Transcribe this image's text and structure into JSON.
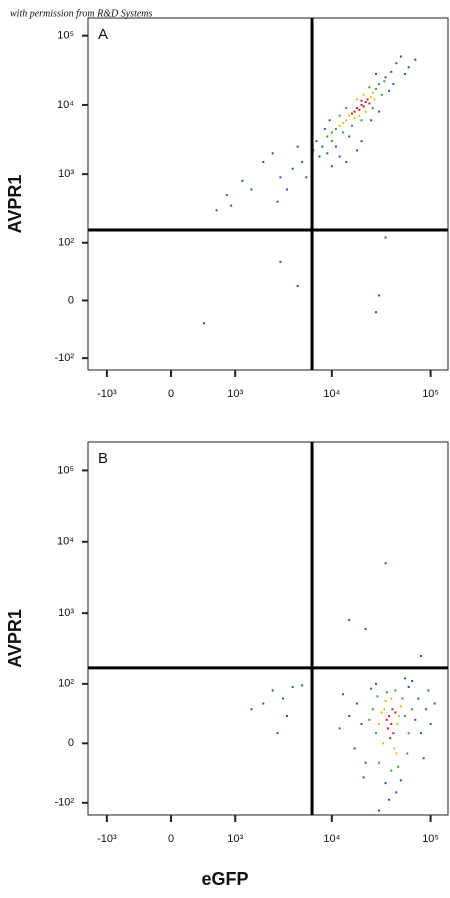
{
  "credit": "with permission from R&D Systems",
  "chart_data": [
    {
      "type": "scatter",
      "panel_label": "A",
      "ylabel": "AVPR1",
      "xscale": "biexponential",
      "yscale": "biexponential",
      "xlim": [
        -1600,
        150000
      ],
      "ylim": [
        -150,
        180000
      ],
      "xticks": [
        {
          "value": -1000,
          "label": "-10³"
        },
        0,
        {
          "value": 1000,
          "label": "10³"
        },
        {
          "value": 10000,
          "label": "10⁴"
        },
        {
          "value": 100000,
          "label": "10⁵"
        }
      ],
      "yticks": [
        {
          "value": -100,
          "label": "-10²"
        },
        0,
        {
          "value": 100,
          "label": "10²"
        },
        {
          "value": 1000,
          "label": "10³"
        },
        {
          "value": 10000,
          "label": "10⁴"
        },
        {
          "value": 100000,
          "label": "10⁵"
        }
      ],
      "gates": {
        "x": 6300,
        "y": 155
      },
      "series": [
        {
          "color": "#3050b0",
          "x": [
            8000,
            7000,
            9000,
            40000,
            45000,
            35000,
            50000,
            6500,
            11000,
            15000,
            25000,
            30000,
            38000,
            60000,
            9500,
            8500,
            12000,
            20000,
            42000,
            55000,
            7500,
            18000,
            28000,
            70000,
            14000,
            5000,
            4000,
            3000,
            2000,
            1500,
            2500,
            1200,
            800,
            3500,
            600,
            900,
            4500,
            5500,
            2800,
            10000,
            3000,
            4500,
            30000,
            400,
            28000,
            35000
          ],
          "y": [
            2500,
            3000,
            2000,
            30000,
            40000,
            25000,
            50000,
            2200,
            2500,
            3500,
            6000,
            8000,
            16000,
            35000,
            6000,
            4500,
            1800,
            3000,
            20000,
            28000,
            1800,
            2200,
            28000,
            45000,
            1500,
            1500,
            1200,
            900,
            1500,
            600,
            2000,
            800,
            500,
            600,
            300,
            350,
            2500,
            900,
            400,
            1300,
            50,
            15,
            5,
            -25,
            -12,
            120
          ]
        },
        {
          "color": "#3c9a3c",
          "x": [
            11000,
            28000,
            10000,
            30000,
            13000,
            24000,
            9000,
            16000,
            32000,
            12000,
            20000,
            34000,
            14000,
            26000,
            10000
          ],
          "y": [
            4500,
            17000,
            4000,
            20000,
            4000,
            18000,
            3500,
            5000,
            14000,
            7000,
            6000,
            22000,
            9000,
            9000,
            3000
          ]
        },
        {
          "color": "#e0c020",
          "x": [
            15000,
            25000,
            14000,
            22000,
            18000,
            26000,
            13000,
            17000,
            27000,
            21000,
            12000,
            19000
          ],
          "y": [
            7000,
            13000,
            6000,
            8000,
            12000,
            15000,
            5500,
            6500,
            12000,
            14000,
            5000,
            7000
          ]
        },
        {
          "color": "#d02020",
          "x": [
            18000,
            20000,
            22000,
            19000,
            21000,
            17000,
            23000,
            20000,
            16000,
            24000
          ],
          "y": [
            9000,
            10000,
            11000,
            8500,
            9500,
            8000,
            12000,
            11500,
            7500,
            10500
          ]
        }
      ]
    },
    {
      "type": "scatter",
      "panel_label": "B",
      "ylabel": "AVPR1",
      "xlabel": "eGFP",
      "xscale": "biexponential",
      "yscale": "biexponential",
      "xlim": [
        -1600,
        150000
      ],
      "ylim": [
        -150,
        250000
      ],
      "xticks": [
        {
          "value": -1000,
          "label": "-10³"
        },
        0,
        {
          "value": 1000,
          "label": "10³"
        },
        {
          "value": 10000,
          "label": "10⁴"
        },
        {
          "value": 100000,
          "label": "10⁵"
        }
      ],
      "yticks": [
        {
          "value": -100,
          "label": "-10²"
        },
        0,
        {
          "value": 100,
          "label": "10²"
        },
        {
          "value": 1000,
          "label": "10³"
        },
        {
          "value": 10000,
          "label": "10⁴"
        },
        {
          "value": 100000,
          "label": "10⁵"
        }
      ],
      "gates": {
        "x": 6300,
        "y": 170
      },
      "series": [
        {
          "color": "#3050b0",
          "x": [
            20000,
            70000,
            18000,
            80000,
            22000,
            75000,
            25000,
            15000,
            90000,
            35000,
            50000,
            60000,
            17000,
            100000,
            12000,
            45000,
            28000,
            85000,
            65000,
            13000,
            110000,
            38000,
            21000,
            95000,
            55000,
            35000,
            15000,
            22000,
            80000,
            30000,
            2000,
            2500,
            3500,
            4000,
            1500,
            2800,
            3200,
            5000
          ],
          "y": [
            20,
            25,
            50,
            10,
            -20,
            60,
            85,
            30,
            40,
            -50,
            -45,
            90,
            -5,
            20,
            15,
            -70,
            100,
            -15,
            110,
            70,
            50,
            -90,
            -40,
            80,
            120,
            5000,
            800,
            600,
            250,
            -130,
            50,
            80,
            30,
            90,
            40,
            10,
            60,
            95
          ]
        },
        {
          "color": "#3c9a3c",
          "x": [
            28000,
            55000,
            26000,
            60000,
            30000,
            52000,
            36000,
            47000,
            24000,
            65000,
            40000,
            29000,
            58000,
            44000
          ],
          "y": [
            10,
            30,
            40,
            10,
            -20,
            60,
            75,
            -25,
            25,
            40,
            -30,
            65,
            -10,
            80
          ]
        },
        {
          "color": "#e0c020",
          "x": [
            34000,
            46000,
            33000,
            48000,
            35000,
            45000,
            30000,
            50000,
            40000,
            43000,
            32000
          ],
          "y": [
            40,
            20,
            0,
            30,
            55,
            -10,
            20,
            45,
            60,
            -5,
            35
          ]
        },
        {
          "color": "#d02020",
          "x": [
            40000,
            38000,
            42000,
            36000,
            44000,
            39000,
            41000,
            37000
          ],
          "y": [
            20,
            30,
            10,
            25,
            35,
            5,
            40,
            15
          ]
        }
      ]
    }
  ]
}
